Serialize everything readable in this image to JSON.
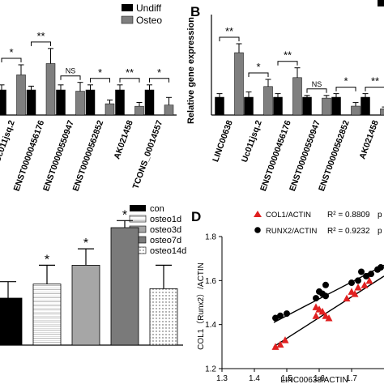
{
  "chart_data": [
    {
      "type": "bar",
      "panel": "A",
      "categories": [
        "Uc011jsq.2",
        "ENST00000456176",
        "ENST00000550947",
        "ENST00000562852",
        "AK021458",
        "TCONS_00014557"
      ],
      "series": [
        {
          "name": "Undiff",
          "color": "#000000",
          "values": [
            1.0,
            1.0,
            1.0,
            1.0,
            1.0,
            1.0
          ],
          "errors": [
            0.2,
            0.15,
            0.2,
            0.2,
            0.2,
            0.2
          ]
        },
        {
          "name": "Osteo",
          "color": "#7f7f7f",
          "values": [
            1.6,
            2.05,
            0.95,
            0.45,
            0.35,
            0.4
          ],
          "errors": [
            0.4,
            0.6,
            0.35,
            0.15,
            0.15,
            0.3
          ]
        }
      ],
      "significance": [
        "*",
        "**",
        "NS",
        "*",
        "**",
        "*"
      ],
      "legend": "top-right"
    },
    {
      "type": "bar",
      "panel": "B",
      "ylabel": "Relative gene expression",
      "categories": [
        "LINC00638",
        "Uc011jsq.2",
        "ENST00000456176",
        "ENST00000550947",
        "ENST00000562852",
        "AK021458",
        "TC"
      ],
      "series": [
        {
          "name": "Undiff",
          "color": "#000000",
          "values": [
            1.0,
            1.0,
            1.0,
            1.0,
            1.0,
            1.0,
            1.0
          ],
          "errors": [
            0.2,
            0.3,
            0.2,
            0.1,
            0.2,
            0.2,
            0.2
          ]
        },
        {
          "name": "Osteo",
          "color": "#7f7f7f",
          "values": [
            3.5,
            1.6,
            2.1,
            0.95,
            0.5,
            0.35,
            0.4
          ],
          "errors": [
            0.5,
            0.4,
            0.55,
            0.15,
            0.2,
            0.1,
            0.1
          ]
        }
      ],
      "significance": [
        "**",
        "*",
        "**",
        "NS",
        "*",
        "**",
        ""
      ]
    },
    {
      "type": "bar",
      "panel": "C",
      "categories": [
        "con",
        "osteo1d",
        "osteo3d",
        "osteo7d",
        "osteo14d"
      ],
      "values": [
        1.0,
        1.3,
        1.7,
        2.5,
        1.2
      ],
      "errors": [
        0.35,
        0.4,
        0.35,
        0.15,
        0.5
      ],
      "significance": [
        "",
        "*",
        "*",
        "*",
        ""
      ],
      "legend": "top-right"
    },
    {
      "type": "scatter",
      "panel": "D",
      "xlabel": "LINC00638/ACTIN",
      "ylabel": "COL1（Runx2）/ACTIN",
      "xlim": [
        1.3,
        1.8
      ],
      "ylim": [
        1.2,
        1.8
      ],
      "xticks": [
        "1.3",
        "1.4",
        "1.5",
        "1.6",
        "1.7"
      ],
      "yticks": [
        "1.2",
        "1.4",
        "1.6",
        "1.8"
      ],
      "series": [
        {
          "name": "COL1/ACTIN",
          "r2": "R² = 0.8809",
          "color": "#e02020",
          "marker": "triangle",
          "points": [
            [
              1.465,
              1.3
            ],
            [
              1.48,
              1.31
            ],
            [
              1.495,
              1.33
            ],
            [
              1.59,
              1.44
            ],
            [
              1.6,
              1.47
            ],
            [
              1.61,
              1.46
            ],
            [
              1.62,
              1.44
            ],
            [
              1.63,
              1.43
            ],
            [
              1.59,
              1.48
            ],
            [
              1.685,
              1.52
            ],
            [
              1.7,
              1.55
            ],
            [
              1.71,
              1.54
            ],
            [
              1.72,
              1.57
            ],
            [
              1.74,
              1.58
            ],
            [
              1.755,
              1.6
            ]
          ],
          "fit": [
            [
              1.46,
              1.3
            ],
            [
              1.8,
              1.62
            ]
          ]
        },
        {
          "name": "RUNX2/ACTIN",
          "r2": "R² = 0.9232",
          "color": "#000000",
          "marker": "circle",
          "points": [
            [
              1.465,
              1.43
            ],
            [
              1.48,
              1.44
            ],
            [
              1.5,
              1.45
            ],
            [
              1.59,
              1.52
            ],
            [
              1.6,
              1.55
            ],
            [
              1.61,
              1.54
            ],
            [
              1.62,
              1.53
            ],
            [
              1.62,
              1.58
            ],
            [
              1.7,
              1.59
            ],
            [
              1.72,
              1.6
            ],
            [
              1.73,
              1.64
            ],
            [
              1.745,
              1.62
            ],
            [
              1.76,
              1.63
            ],
            [
              1.78,
              1.65
            ],
            [
              1.79,
              1.66
            ]
          ],
          "fit": [
            [
              1.46,
              1.41
            ],
            [
              1.8,
              1.67
            ]
          ]
        }
      ]
    }
  ],
  "labels": {
    "panel_b": "B",
    "panel_d": "D",
    "legend_a": [
      "Undiff",
      "Osteo"
    ],
    "legend_c": [
      "con",
      "osteo1d",
      "osteo3d",
      "osteo7d",
      "osteo14d"
    ],
    "d_legend_p": "p"
  }
}
